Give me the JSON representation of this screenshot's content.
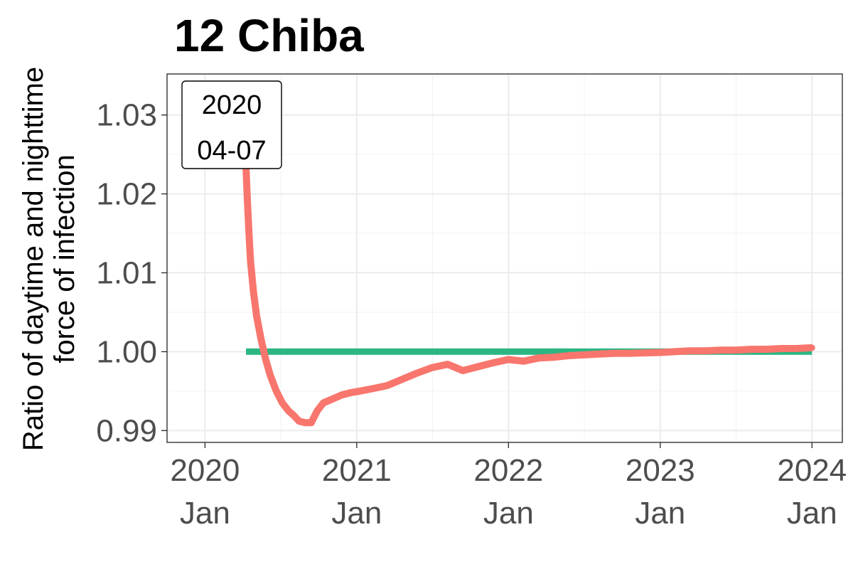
{
  "chart_data": {
    "type": "line",
    "title": "12 Chiba",
    "ylabel_lines": [
      "Ratio of daytime and nighttime",
      "force of infection"
    ],
    "xlabel": "",
    "x_ticks": [
      {
        "year": "2020",
        "month": "Jan",
        "value": 2020.0
      },
      {
        "year": "2021",
        "month": "Jan",
        "value": 2021.0
      },
      {
        "year": "2022",
        "month": "Jan",
        "value": 2022.0
      },
      {
        "year": "2023",
        "month": "Jan",
        "value": 2023.0
      },
      {
        "year": "2024",
        "month": "Jan",
        "value": 2024.0
      }
    ],
    "y_ticks": [
      "0.99",
      "1.00",
      "1.01",
      "1.02",
      "1.03"
    ],
    "xlim": [
      2019.75,
      2024.2
    ],
    "ylim": [
      0.9885,
      1.0352
    ],
    "grid": true,
    "annotation": {
      "line1": "2020",
      "line2": "04-07"
    },
    "series": [
      {
        "color": "#F8766D",
        "x": [
          2020.27,
          2020.28,
          2020.29,
          2020.3,
          2020.32,
          2020.34,
          2020.37,
          2020.4,
          2020.43,
          2020.47,
          2020.51,
          2020.55,
          2020.58,
          2020.62,
          2020.66,
          2020.7,
          2020.74,
          2020.78,
          2020.84,
          2020.9,
          2020.96,
          2021.02,
          2021.1,
          2021.2,
          2021.3,
          2021.4,
          2021.5,
          2021.6,
          2021.7,
          2021.8,
          2021.9,
          2022.0,
          2022.1,
          2022.2,
          2022.3,
          2022.4,
          2022.5,
          2022.6,
          2022.7,
          2022.8,
          2022.9,
          2023.0,
          2023.1,
          2023.2,
          2023.3,
          2023.4,
          2023.5,
          2023.6,
          2023.7,
          2023.8,
          2023.9,
          2024.0
        ],
        "y": [
          1.0235,
          1.019,
          1.015,
          1.0115,
          1.0075,
          1.0045,
          1.0015,
          0.999,
          0.997,
          0.995,
          0.9935,
          0.9925,
          0.992,
          0.9912,
          0.991,
          0.991,
          0.9925,
          0.9935,
          0.994,
          0.9945,
          0.9948,
          0.995,
          0.9953,
          0.9957,
          0.9965,
          0.9973,
          0.998,
          0.9984,
          0.9976,
          0.9981,
          0.9986,
          0.999,
          0.9988,
          0.9992,
          0.9993,
          0.9995,
          0.9996,
          0.9997,
          0.9998,
          0.9998,
          0.99985,
          0.9999,
          1.0,
          1.0001,
          1.0001,
          1.0002,
          1.0002,
          1.0003,
          1.0003,
          1.0004,
          1.0004,
          1.0005
        ]
      },
      {
        "color": "#2CB684",
        "x": [
          2020.27,
          2024.0
        ],
        "y": [
          1.0,
          1.0
        ]
      }
    ]
  }
}
